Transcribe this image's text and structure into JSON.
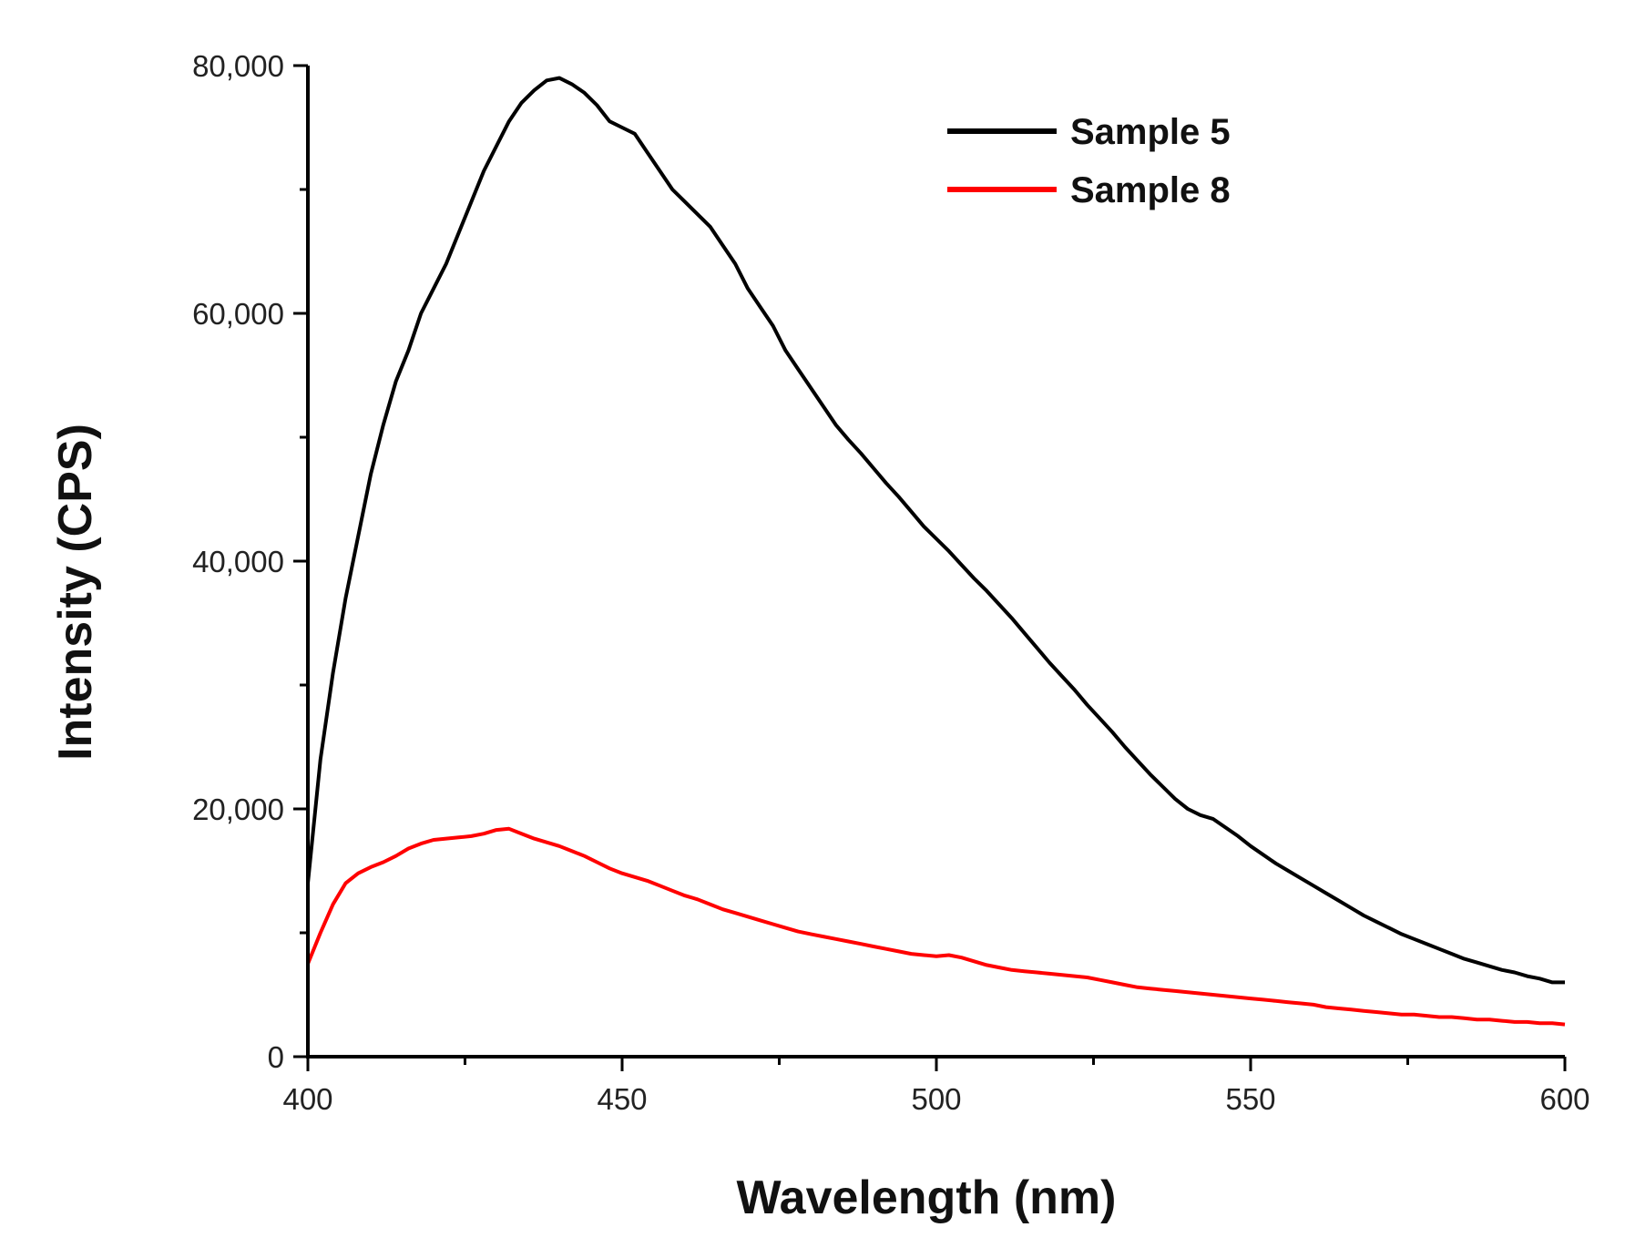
{
  "chart_data": {
    "type": "line",
    "title": "",
    "xlabel": "Wavelength (nm)",
    "ylabel": "Intensity (CPS)",
    "xlim": [
      400,
      600
    ],
    "ylim": [
      0,
      80000
    ],
    "xticks": [
      400,
      450,
      500,
      550,
      600
    ],
    "xtick_labels": [
      "400",
      "450",
      "500",
      "550",
      "600"
    ],
    "yticks": [
      0,
      20000,
      40000,
      60000,
      80000
    ],
    "ytick_labels": [
      "0",
      "20,000",
      "40,000",
      "60,000",
      "80,000"
    ],
    "grid": false,
    "legend_position": "top-right",
    "series": [
      {
        "name": "Sample 5",
        "color": "#000000",
        "x": [
          400,
          402,
          404,
          406,
          408,
          410,
          412,
          414,
          416,
          418,
          420,
          422,
          424,
          426,
          428,
          430,
          432,
          434,
          436,
          438,
          440,
          442,
          444,
          446,
          448,
          450,
          452,
          454,
          456,
          458,
          460,
          462,
          464,
          466,
          468,
          470,
          472,
          474,
          476,
          478,
          480,
          482,
          484,
          486,
          488,
          490,
          492,
          494,
          496,
          498,
          500,
          502,
          504,
          506,
          508,
          510,
          512,
          514,
          516,
          518,
          520,
          522,
          524,
          526,
          528,
          530,
          532,
          534,
          536,
          538,
          540,
          542,
          544,
          546,
          548,
          550,
          552,
          554,
          556,
          558,
          560,
          562,
          564,
          566,
          568,
          570,
          572,
          574,
          576,
          578,
          580,
          582,
          584,
          586,
          588,
          590,
          592,
          594,
          596,
          598,
          600
        ],
        "values": [
          14000,
          24000,
          31000,
          37000,
          42000,
          47000,
          51000,
          54500,
          57000,
          60000,
          62000,
          64000,
          66500,
          69000,
          71500,
          73500,
          75500,
          77000,
          78000,
          78800,
          79000,
          78500,
          77800,
          76800,
          75500,
          75000,
          74500,
          73000,
          71500,
          70000,
          69000,
          68000,
          67000,
          65500,
          64000,
          62000,
          60500,
          59000,
          57000,
          55500,
          54000,
          52500,
          51000,
          49800,
          48700,
          47500,
          46300,
          45200,
          44000,
          42800,
          41800,
          40800,
          39700,
          38600,
          37600,
          36500,
          35400,
          34200,
          33000,
          31800,
          30700,
          29600,
          28400,
          27300,
          26200,
          25000,
          23900,
          22800,
          21800,
          20800,
          20000,
          19500,
          19200,
          18500,
          17800,
          17000,
          16300,
          15600,
          15000,
          14400,
          13800,
          13200,
          12600,
          12000,
          11400,
          10900,
          10400,
          9900,
          9500,
          9100,
          8700,
          8300,
          7900,
          7600,
          7300,
          7000,
          6800,
          6500,
          6300,
          6000,
          6000
        ]
      },
      {
        "name": "Sample 8",
        "color": "#ff0000",
        "x": [
          400,
          402,
          404,
          406,
          408,
          410,
          412,
          414,
          416,
          418,
          420,
          422,
          424,
          426,
          428,
          430,
          432,
          434,
          436,
          438,
          440,
          442,
          444,
          446,
          448,
          450,
          452,
          454,
          456,
          458,
          460,
          462,
          464,
          466,
          468,
          470,
          472,
          474,
          476,
          478,
          480,
          482,
          484,
          486,
          488,
          490,
          492,
          494,
          496,
          498,
          500,
          502,
          504,
          506,
          508,
          510,
          512,
          514,
          516,
          518,
          520,
          522,
          524,
          526,
          528,
          530,
          532,
          534,
          536,
          538,
          540,
          542,
          544,
          546,
          548,
          550,
          552,
          554,
          556,
          558,
          560,
          562,
          564,
          566,
          568,
          570,
          572,
          574,
          576,
          578,
          580,
          582,
          584,
          586,
          588,
          590,
          592,
          594,
          596,
          598,
          600
        ],
        "values": [
          7500,
          10000,
          12300,
          14000,
          14800,
          15300,
          15700,
          16200,
          16800,
          17200,
          17500,
          17600,
          17700,
          17800,
          18000,
          18300,
          18400,
          18000,
          17600,
          17300,
          17000,
          16600,
          16200,
          15700,
          15200,
          14800,
          14500,
          14200,
          13800,
          13400,
          13000,
          12700,
          12300,
          11900,
          11600,
          11300,
          11000,
          10700,
          10400,
          10100,
          9900,
          9700,
          9500,
          9300,
          9100,
          8900,
          8700,
          8500,
          8300,
          8200,
          8100,
          8200,
          8000,
          7700,
          7400,
          7200,
          7000,
          6900,
          6800,
          6700,
          6600,
          6500,
          6400,
          6200,
          6000,
          5800,
          5600,
          5500,
          5400,
          5300,
          5200,
          5100,
          5000,
          4900,
          4800,
          4700,
          4600,
          4500,
          4400,
          4300,
          4200,
          4000,
          3900,
          3800,
          3700,
          3600,
          3500,
          3400,
          3400,
          3300,
          3200,
          3200,
          3100,
          3000,
          3000,
          2900,
          2800,
          2800,
          2700,
          2700,
          2600
        ]
      }
    ]
  }
}
